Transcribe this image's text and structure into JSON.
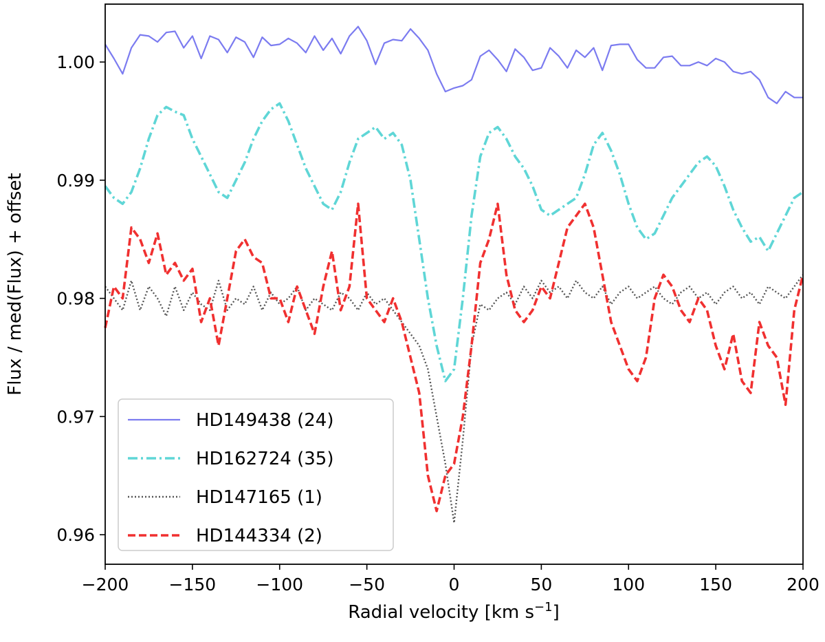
{
  "chart_data": {
    "type": "line",
    "xlabel": "Radial velocity [km s",
    "xlabel_sup": "−1",
    "xlabel_end": "]",
    "ylabel": "Flux / med(Flux) + offset",
    "xlim": [
      -200,
      200
    ],
    "ylim": [
      0.9575,
      1.0049
    ],
    "x_ticks": [
      -200,
      -150,
      -100,
      -50,
      0,
      50,
      100,
      150,
      200
    ],
    "x_tick_labels": [
      "−200",
      "−150",
      "−100",
      "−50",
      "0",
      "50",
      "100",
      "150",
      "200"
    ],
    "y_ticks": [
      0.96,
      0.97,
      0.98,
      0.99,
      1.0
    ],
    "y_tick_labels": [
      "0.96",
      "0.97",
      "0.98",
      "0.99",
      "1.00"
    ],
    "grid": false,
    "legend_position": "lower-left",
    "series": [
      {
        "name": "HD149438 (24)",
        "color": "#7b7bf0",
        "style": "solid",
        "x": [
          -200,
          -195,
          -190,
          -185,
          -180,
          -175,
          -170,
          -165,
          -160,
          -155,
          -150,
          -145,
          -140,
          -135,
          -130,
          -125,
          -120,
          -115,
          -110,
          -105,
          -100,
          -95,
          -90,
          -85,
          -80,
          -75,
          -70,
          -65,
          -60,
          -55,
          -50,
          -45,
          -40,
          -35,
          -30,
          -25,
          -20,
          -15,
          -10,
          -5,
          0,
          5,
          10,
          15,
          20,
          25,
          30,
          35,
          40,
          45,
          50,
          55,
          60,
          65,
          70,
          75,
          80,
          85,
          90,
          95,
          100,
          105,
          110,
          115,
          120,
          125,
          130,
          135,
          140,
          145,
          150,
          155,
          160,
          165,
          170,
          175,
          180,
          185,
          190,
          195,
          200
        ],
        "y": [
          1.0015,
          1.0003,
          0.999,
          1.0012,
          1.0023,
          1.0022,
          1.0017,
          1.0025,
          1.0026,
          1.0012,
          1.0022,
          1.0003,
          1.0022,
          1.0019,
          1.0008,
          1.0021,
          1.0017,
          1.0004,
          1.0021,
          1.0014,
          1.0015,
          1.002,
          1.0016,
          1.0008,
          1.0022,
          1.001,
          1.002,
          1.0007,
          1.0022,
          1.003,
          1.0018,
          0.9998,
          1.0016,
          1.0019,
          1.0018,
          1.0028,
          1.002,
          1.001,
          0.999,
          0.9975,
          0.9978,
          0.998,
          0.9985,
          1.0005,
          1.001,
          1.0002,
          0.9992,
          1.0011,
          1.0004,
          0.9993,
          0.9995,
          1.0012,
          1.0005,
          0.9995,
          1.001,
          1.0004,
          1.0012,
          0.9993,
          1.0014,
          1.0015,
          1.0015,
          1.0002,
          0.9995,
          0.9995,
          1.0004,
          1.0005,
          0.9997,
          0.9997,
          1.0,
          0.9997,
          1.0003,
          1.0,
          0.9992,
          0.999,
          0.9992,
          0.9985,
          0.997,
          0.9965,
          0.9975,
          0.997,
          0.997
        ]
      },
      {
        "name": "HD162724 (35)",
        "color": "#5fd6d6",
        "style": "dashdot",
        "x": [
          -200,
          -195,
          -190,
          -185,
          -180,
          -175,
          -170,
          -165,
          -160,
          -155,
          -150,
          -145,
          -140,
          -135,
          -130,
          -125,
          -120,
          -115,
          -110,
          -105,
          -100,
          -95,
          -90,
          -85,
          -80,
          -75,
          -70,
          -65,
          -60,
          -55,
          -50,
          -45,
          -40,
          -35,
          -30,
          -25,
          -20,
          -15,
          -10,
          -5,
          0,
          5,
          10,
          15,
          20,
          25,
          30,
          35,
          40,
          45,
          50,
          55,
          60,
          65,
          70,
          75,
          80,
          85,
          90,
          95,
          100,
          105,
          110,
          115,
          120,
          125,
          130,
          135,
          140,
          145,
          150,
          155,
          160,
          165,
          170,
          175,
          180,
          185,
          190,
          195,
          200
        ],
        "y": [
          0.9895,
          0.9885,
          0.988,
          0.989,
          0.991,
          0.9935,
          0.9955,
          0.9962,
          0.9958,
          0.9955,
          0.9935,
          0.992,
          0.9905,
          0.989,
          0.9885,
          0.99,
          0.9915,
          0.9935,
          0.995,
          0.996,
          0.9965,
          0.995,
          0.993,
          0.991,
          0.9895,
          0.988,
          0.9875,
          0.989,
          0.9915,
          0.9935,
          0.994,
          0.9945,
          0.9935,
          0.994,
          0.993,
          0.99,
          0.985,
          0.98,
          0.976,
          0.973,
          0.974,
          0.98,
          0.987,
          0.992,
          0.994,
          0.9945,
          0.9935,
          0.992,
          0.991,
          0.9895,
          0.9875,
          0.987,
          0.9875,
          0.988,
          0.9885,
          0.9905,
          0.993,
          0.994,
          0.9925,
          0.9905,
          0.988,
          0.986,
          0.985,
          0.9855,
          0.987,
          0.9885,
          0.9895,
          0.9905,
          0.9915,
          0.992,
          0.9912,
          0.9895,
          0.9875,
          0.986,
          0.9848,
          0.9852,
          0.984,
          0.9855,
          0.987,
          0.9885,
          0.989
        ]
      },
      {
        "name": "HD147165 (1)",
        "color": "#555555",
        "style": "dotted",
        "x": [
          -200,
          -195,
          -190,
          -185,
          -180,
          -175,
          -170,
          -165,
          -160,
          -155,
          -150,
          -145,
          -140,
          -135,
          -130,
          -125,
          -120,
          -115,
          -110,
          -105,
          -100,
          -95,
          -90,
          -85,
          -80,
          -75,
          -70,
          -65,
          -60,
          -55,
          -50,
          -45,
          -40,
          -35,
          -30,
          -25,
          -20,
          -15,
          -10,
          -5,
          0,
          5,
          10,
          15,
          20,
          25,
          30,
          35,
          40,
          45,
          50,
          55,
          60,
          65,
          70,
          75,
          80,
          85,
          90,
          95,
          100,
          105,
          110,
          115,
          120,
          125,
          130,
          135,
          140,
          145,
          150,
          155,
          160,
          165,
          170,
          175,
          180,
          185,
          190,
          195,
          200
        ],
        "y": [
          0.981,
          0.98,
          0.979,
          0.9815,
          0.979,
          0.981,
          0.98,
          0.9785,
          0.981,
          0.979,
          0.9805,
          0.9795,
          0.979,
          0.9815,
          0.979,
          0.98,
          0.9795,
          0.981,
          0.979,
          0.9805,
          0.9795,
          0.98,
          0.981,
          0.979,
          0.98,
          0.9795,
          0.979,
          0.9805,
          0.98,
          0.979,
          0.9805,
          0.9795,
          0.98,
          0.979,
          0.978,
          0.977,
          0.976,
          0.974,
          0.97,
          0.966,
          0.961,
          0.968,
          0.976,
          0.9795,
          0.979,
          0.98,
          0.9805,
          0.9795,
          0.981,
          0.98,
          0.9815,
          0.9805,
          0.981,
          0.98,
          0.9815,
          0.9805,
          0.98,
          0.981,
          0.9795,
          0.9805,
          0.981,
          0.98,
          0.9805,
          0.981,
          0.98,
          0.9795,
          0.9805,
          0.981,
          0.98,
          0.9805,
          0.9795,
          0.9805,
          0.981,
          0.98,
          0.9805,
          0.9795,
          0.981,
          0.9805,
          0.98,
          0.981,
          0.982
        ]
      },
      {
        "name": "HD144334 (2)",
        "color": "#f03030",
        "style": "dashed",
        "x": [
          -200,
          -195,
          -190,
          -185,
          -180,
          -175,
          -170,
          -165,
          -160,
          -155,
          -150,
          -145,
          -140,
          -135,
          -130,
          -125,
          -120,
          -115,
          -110,
          -105,
          -100,
          -95,
          -90,
          -85,
          -80,
          -75,
          -70,
          -65,
          -60,
          -55,
          -50,
          -45,
          -40,
          -35,
          -30,
          -25,
          -20,
          -15,
          -10,
          -5,
          0,
          5,
          10,
          15,
          20,
          25,
          30,
          35,
          40,
          45,
          50,
          55,
          60,
          65,
          70,
          75,
          80,
          85,
          90,
          95,
          100,
          105,
          110,
          115,
          120,
          125,
          130,
          135,
          140,
          145,
          150,
          155,
          160,
          165,
          170,
          175,
          180,
          185,
          190,
          195,
          200
        ],
        "y": [
          0.9775,
          0.981,
          0.98,
          0.986,
          0.985,
          0.983,
          0.9855,
          0.982,
          0.983,
          0.9815,
          0.9825,
          0.978,
          0.98,
          0.976,
          0.98,
          0.984,
          0.985,
          0.9835,
          0.983,
          0.98,
          0.98,
          0.978,
          0.981,
          0.979,
          0.977,
          0.981,
          0.984,
          0.979,
          0.981,
          0.988,
          0.98,
          0.979,
          0.978,
          0.98,
          0.978,
          0.975,
          0.972,
          0.965,
          0.962,
          0.965,
          0.966,
          0.97,
          0.976,
          0.983,
          0.985,
          0.988,
          0.982,
          0.979,
          0.978,
          0.979,
          0.981,
          0.98,
          0.983,
          0.986,
          0.987,
          0.988,
          0.986,
          0.982,
          0.978,
          0.976,
          0.974,
          0.973,
          0.975,
          0.98,
          0.982,
          0.981,
          0.979,
          0.978,
          0.98,
          0.979,
          0.976,
          0.974,
          0.977,
          0.973,
          0.972,
          0.978,
          0.976,
          0.975,
          0.971,
          0.979,
          0.982
        ]
      }
    ]
  }
}
